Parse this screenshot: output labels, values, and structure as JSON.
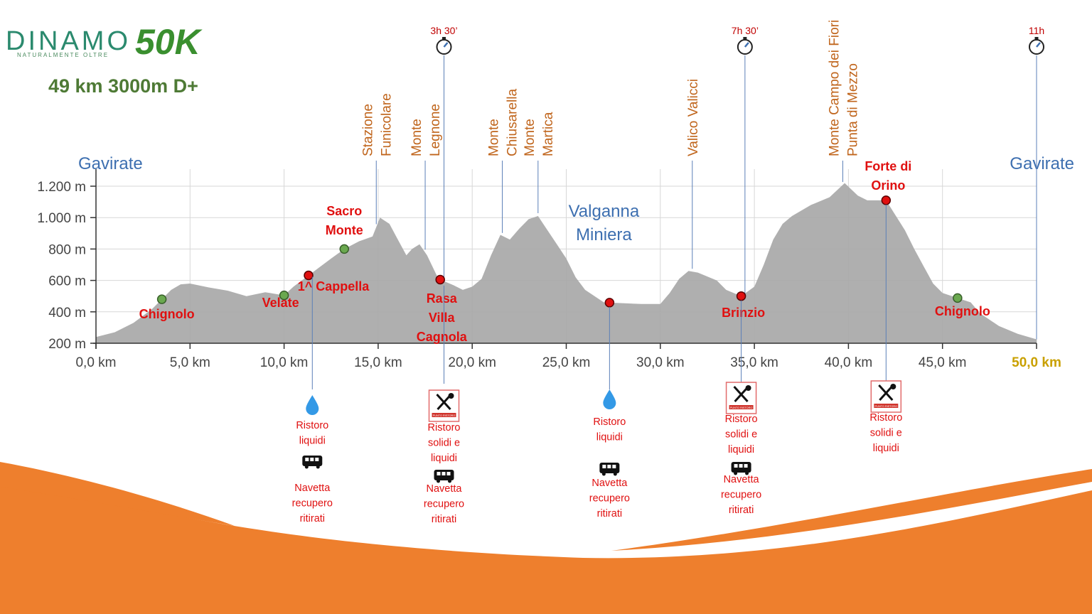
{
  "branding": {
    "logo_text": "DINAMO",
    "logo_accent": "50K",
    "logo_tagline": "NATURALMENTE OLTRE",
    "subtitle": "49 km 3000m D+",
    "colors": {
      "logo_text": "#2b8a6e",
      "accent": "#3a8f2f",
      "subtitle": "#4e7a35"
    }
  },
  "colors": {
    "profile_fill": "#a8a8a8",
    "grid": "#d7d7d7",
    "place_blue": "#3d6fb0",
    "peak_brown": "#c0651c",
    "waypoint_red": "#e01010",
    "marker_green": "#6aa84f",
    "banner_orange": "#ee7f2d",
    "time_red": "#c00000",
    "line_blue": "#5b7fb8"
  },
  "chart_data": {
    "type": "area",
    "title": "",
    "xlabel": "",
    "ylabel": "",
    "xlim": [
      0,
      50
    ],
    "ylim": [
      200,
      1250
    ],
    "x_ticks": [
      0,
      5,
      10,
      15,
      20,
      25,
      30,
      35,
      40,
      45,
      50
    ],
    "x_tick_labels": [
      "0,0 km",
      "5,0 km",
      "10,0 km",
      "15,0 km",
      "20,0 km",
      "25,0 km",
      "30,0 km",
      "35,0 km",
      "40,0 km",
      "45,0 km",
      "50,0 km"
    ],
    "y_ticks": [
      200,
      400,
      600,
      800,
      1000,
      1200
    ],
    "y_tick_labels": [
      "200 m",
      "400 m",
      "600 m",
      "800 m",
      "1.000 m",
      "1.200 m"
    ],
    "grid": true,
    "profile": [
      [
        0,
        240
      ],
      [
        1,
        270
      ],
      [
        2,
        330
      ],
      [
        3,
        420
      ],
      [
        4,
        540
      ],
      [
        4.5,
        575
      ],
      [
        5,
        580
      ],
      [
        6,
        555
      ],
      [
        7,
        535
      ],
      [
        8,
        500
      ],
      [
        9,
        525
      ],
      [
        10,
        505
      ],
      [
        10.5,
        560
      ],
      [
        11.5,
        650
      ],
      [
        12.5,
        740
      ],
      [
        13.2,
        800
      ],
      [
        14,
        850
      ],
      [
        14.7,
        880
      ],
      [
        15.1,
        1000
      ],
      [
        15.6,
        960
      ],
      [
        16,
        870
      ],
      [
        16.5,
        760
      ],
      [
        16.8,
        800
      ],
      [
        17.2,
        830
      ],
      [
        17.6,
        760
      ],
      [
        18.2,
        610
      ],
      [
        19,
        570
      ],
      [
        19.5,
        540
      ],
      [
        20,
        560
      ],
      [
        20.5,
        610
      ],
      [
        21,
        760
      ],
      [
        21.5,
        890
      ],
      [
        22,
        860
      ],
      [
        22.5,
        930
      ],
      [
        23,
        990
      ],
      [
        23.5,
        1010
      ],
      [
        24,
        920
      ],
      [
        24.5,
        830
      ],
      [
        25,
        740
      ],
      [
        25.5,
        620
      ],
      [
        26,
        540
      ],
      [
        27,
        460
      ],
      [
        28,
        455
      ],
      [
        29,
        450
      ],
      [
        30,
        450
      ],
      [
        30.5,
        520
      ],
      [
        31,
        610
      ],
      [
        31.5,
        660
      ],
      [
        32,
        650
      ],
      [
        33,
        600
      ],
      [
        33.5,
        540
      ],
      [
        34.3,
        500
      ],
      [
        35,
        560
      ],
      [
        35.5,
        700
      ],
      [
        36,
        860
      ],
      [
        36.5,
        960
      ],
      [
        37,
        1010
      ],
      [
        38,
        1080
      ],
      [
        39,
        1130
      ],
      [
        39.8,
        1220
      ],
      [
        40.5,
        1140
      ],
      [
        41,
        1110
      ],
      [
        42,
        1110
      ],
      [
        43,
        920
      ],
      [
        43.5,
        800
      ],
      [
        44,
        690
      ],
      [
        44.5,
        580
      ],
      [
        45,
        520
      ],
      [
        46,
        480
      ],
      [
        46.5,
        460
      ],
      [
        47,
        390
      ],
      [
        48,
        310
      ],
      [
        49,
        260
      ],
      [
        50,
        225
      ]
    ],
    "highlight_tick": "50,0 km",
    "places": [
      {
        "name": "Gavirate",
        "km": 0
      },
      {
        "name": "Valganna Miniera",
        "km": 27
      },
      {
        "name": "Gavirate",
        "km": 50
      }
    ],
    "peaks": [
      {
        "lines": [
          "Stazione",
          "Funicolare"
        ],
        "km": 14.9
      },
      {
        "lines": [
          "Monte",
          "Legnone"
        ],
        "km": 17.5
      },
      {
        "lines": [
          "Monte",
          "Chiusarella"
        ],
        "km": 21.6
      },
      {
        "lines": [
          "Monte",
          "Martica"
        ],
        "km": 23.5
      },
      {
        "lines": [
          "Valico Valicci"
        ],
        "km": 31.7
      },
      {
        "lines": [
          "Monte Campo dei Fiori",
          "Punta di Mezzo"
        ],
        "km": 39.7
      }
    ],
    "waypoints": [
      {
        "name": "Chignolo",
        "km": 3.5,
        "marker": "green"
      },
      {
        "name": "Velate",
        "km": 10,
        "marker": "green"
      },
      {
        "name": "1^ Cappella",
        "km": 11.3,
        "marker": "red"
      },
      {
        "name": "Sacro Monte",
        "km": 13.2,
        "marker": "green"
      },
      {
        "name": "Rasa Villa Cagnola",
        "km": 18.3,
        "marker": "red"
      },
      {
        "name": "Valganna Miniera",
        "km": 27.3,
        "marker": "red"
      },
      {
        "name": "Brinzio",
        "km": 34.3,
        "marker": "red"
      },
      {
        "name": "Forte di Orino",
        "km": 42,
        "marker": "red"
      },
      {
        "name": "Chignolo",
        "km": 45.8,
        "marker": "green"
      }
    ],
    "time_limits": [
      {
        "time": "3h 30’",
        "km": 18.5
      },
      {
        "time": "7h 30’",
        "km": 34.5
      },
      {
        "time": "11h",
        "km": 50
      }
    ],
    "aid_stations": [
      {
        "km": 11.5,
        "type": "liquidi",
        "label": "Ristoro liquidi",
        "shuttle": "Navetta recupero ritirati"
      },
      {
        "km": 18.5,
        "type": "solidi",
        "label": "Ristoro solidi e liquidi",
        "shuttle": "Navetta recupero ritirati"
      },
      {
        "km": 27.3,
        "type": "liquidi",
        "label": "Ristoro liquidi",
        "shuttle": "Navetta recupero ritirati"
      },
      {
        "km": 34.3,
        "type": "solidi",
        "label": "Ristoro solidi e liquidi",
        "shuttle": "Navetta recupero ritirati"
      },
      {
        "km": 42,
        "type": "solidi",
        "label": "Ristoro solidi e liquidi",
        "shuttle": ""
      }
    ],
    "aid_sign_text": "PUNTO RISTORO"
  }
}
